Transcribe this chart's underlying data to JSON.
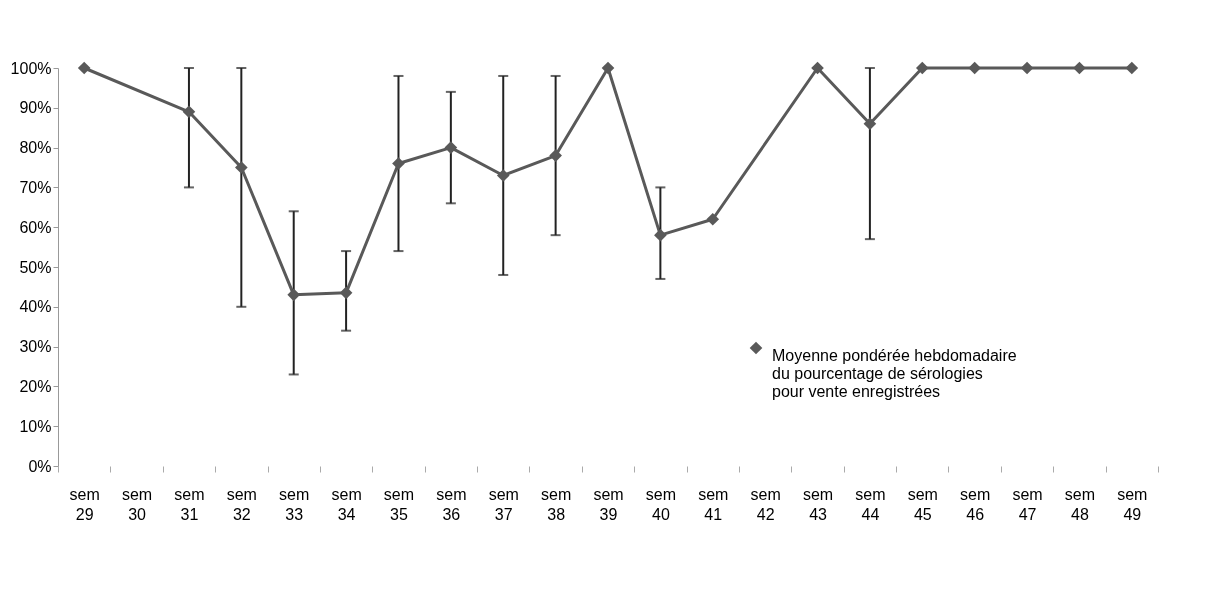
{
  "chart_data": {
    "type": "line",
    "categories": [
      "sem 29",
      "sem 30",
      "sem 31",
      "sem 32",
      "sem 33",
      "sem 34",
      "sem 35",
      "sem 36",
      "sem 37",
      "sem 38",
      "sem 39",
      "sem 40",
      "sem 41",
      "sem 42",
      "sem 43",
      "sem 44",
      "sem 45",
      "sem 46",
      "sem 47",
      "sem 48",
      "sem 49"
    ],
    "series": [
      {
        "name": "Moyenne pondérée hebdomadaire du pourcentage de sérologies pour vente enregistrées",
        "color": "#595959",
        "values": [
          100,
          null,
          89,
          75,
          43,
          43.5,
          76,
          80,
          73,
          78,
          100,
          58,
          62,
          null,
          100,
          86,
          100,
          100,
          100,
          100,
          100
        ],
        "errors": [
          null,
          null,
          [
            70,
            100
          ],
          [
            40,
            100
          ],
          [
            23,
            64
          ],
          [
            34,
            54
          ],
          [
            54,
            98
          ],
          [
            66,
            94
          ],
          [
            48,
            98
          ],
          [
            58,
            98
          ],
          null,
          [
            47,
            70
          ],
          null,
          null,
          null,
          [
            57,
            100
          ],
          null,
          null,
          null,
          null,
          null
        ]
      }
    ],
    "ylim": [
      0,
      100
    ],
    "yticks": [
      {
        "value": 0,
        "label": "0%"
      },
      {
        "value": 10,
        "label": "10%"
      },
      {
        "value": 20,
        "label": "20%"
      },
      {
        "value": 30,
        "label": "30%"
      },
      {
        "value": 40,
        "label": "40%"
      },
      {
        "value": 50,
        "label": "50%"
      },
      {
        "value": 60,
        "label": "60%"
      },
      {
        "value": 70,
        "label": "70%"
      },
      {
        "value": 80,
        "label": "80%"
      },
      {
        "value": 90,
        "label": "90%"
      },
      {
        "value": 100,
        "label": "100%"
      }
    ],
    "grid": false,
    "legend": "right",
    "marker": "diamond",
    "line_style": "solid"
  }
}
